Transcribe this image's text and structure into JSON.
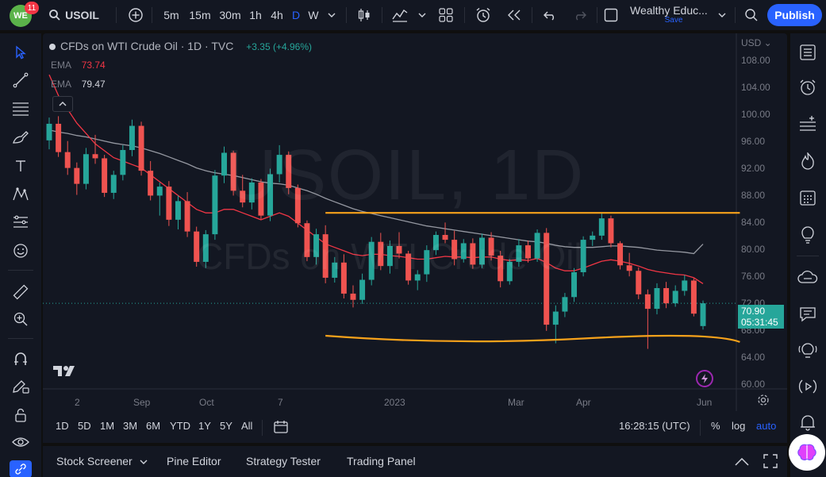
{
  "topbar": {
    "avatar_text": "WE",
    "notification_count": "11",
    "symbol": "USOIL",
    "timeframes": [
      "5m",
      "15m",
      "30m",
      "1h",
      "4h",
      "D",
      "W"
    ],
    "active_timeframe": "D",
    "layout_name": "Wealthy Educ...",
    "layout_status": "Save",
    "publish_label": "Publish"
  },
  "legend": {
    "instrument": "CFDs on WTI Crude Oil",
    "interval": "1D",
    "source": "TVC",
    "change": "+3.35 (+4.96%)"
  },
  "indicators": [
    {
      "name": "EMA",
      "value": "73.74",
      "color": "#f23645"
    },
    {
      "name": "EMA",
      "value": "79.47",
      "color": "#b2b5be"
    }
  ],
  "watermark": {
    "symbol": "USOIL, 1D",
    "description": "CFDs on WTI Crude Oil"
  },
  "price_axis": {
    "currency": "USD",
    "labels": [
      "108.00",
      "104.00",
      "100.00",
      "96.00",
      "92.00",
      "88.00",
      "84.00",
      "80.00",
      "76.00",
      "72.00",
      "68.00",
      "64.00",
      "60.00"
    ],
    "last_price": "70.90",
    "countdown": "05:31:45"
  },
  "time_axis": {
    "labels": [
      "2",
      "Sep",
      "Oct",
      "7",
      "2023",
      "Mar",
      "Apr",
      "Jun"
    ]
  },
  "range_bar": {
    "ranges": [
      "1D",
      "5D",
      "1M",
      "3M",
      "6M",
      "YTD",
      "1Y",
      "5Y",
      "All"
    ],
    "clock": "16:28:15 (UTC)",
    "percent_label": "%",
    "log_label": "log",
    "auto_label": "auto"
  },
  "footer": {
    "tabs": [
      "Stock Screener",
      "Pine Editor",
      "Strategy Tester",
      "Trading Panel"
    ]
  },
  "colors": {
    "up": "#26a69a",
    "down": "#ef5350",
    "ema_fast": "#f23645",
    "ema_slow": "#9598a1",
    "trendline": "#f7a21b",
    "accent": "#2962ff"
  },
  "chart_data": {
    "type": "candlestick",
    "ylim": [
      58.5,
      110
    ],
    "x_ticks": [
      "2",
      "Sep",
      "Oct",
      "7",
      "2023",
      "Mar",
      "Apr",
      "Jun"
    ],
    "series": [
      {
        "name": "USOIL",
        "values_description": "daily OHLC",
        "values": [
          [
            94.5,
            97.8,
            93.2,
            96.9
          ],
          [
            96.9,
            98.0,
            92.1,
            92.8
          ],
          [
            92.8,
            94.4,
            89.5,
            90.5
          ],
          [
            90.5,
            91.3,
            86.6,
            88.2
          ],
          [
            88.2,
            93.4,
            87.4,
            92.5
          ],
          [
            92.5,
            95.3,
            91.1,
            91.9
          ],
          [
            91.9,
            92.4,
            86.3,
            86.9
          ],
          [
            86.9,
            90.1,
            86.0,
            89.5
          ],
          [
            89.5,
            93.8,
            88.7,
            93.1
          ],
          [
            93.1,
            97.5,
            92.2,
            96.6
          ],
          [
            96.6,
            97.2,
            89.4,
            90.1
          ],
          [
            90.1,
            91.5,
            85.8,
            86.5
          ],
          [
            86.5,
            88.4,
            83.6,
            87.8
          ],
          [
            87.8,
            88.6,
            82.1,
            83.0
          ],
          [
            83.0,
            86.5,
            81.6,
            85.7
          ],
          [
            85.7,
            87.0,
            80.5,
            81.3
          ],
          [
            81.3,
            82.0,
            76.2,
            76.9
          ],
          [
            76.9,
            81.5,
            76.0,
            80.9
          ],
          [
            80.9,
            90.2,
            80.1,
            89.4
          ],
          [
            89.4,
            93.6,
            88.3,
            92.7
          ],
          [
            92.7,
            93.0,
            86.5,
            87.2
          ],
          [
            87.2,
            89.5,
            84.8,
            85.5
          ],
          [
            85.5,
            89.0,
            84.5,
            88.4
          ],
          [
            88.4,
            88.9,
            83.1,
            83.6
          ],
          [
            83.6,
            90.4,
            82.8,
            89.6
          ],
          [
            89.6,
            93.8,
            88.4,
            92.4
          ],
          [
            92.4,
            92.9,
            86.7,
            87.6
          ],
          [
            87.6,
            88.1,
            81.9,
            82.5
          ],
          [
            82.5,
            82.9,
            77.0,
            77.6
          ],
          [
            77.6,
            81.7,
            76.5,
            80.9
          ],
          [
            80.9,
            82.2,
            73.8,
            74.6
          ],
          [
            74.6,
            77.6,
            73.9,
            76.8
          ],
          [
            76.8,
            78.0,
            71.6,
            72.3
          ],
          [
            72.3,
            73.5,
            70.3,
            71.4
          ],
          [
            71.4,
            75.2,
            70.8,
            74.3
          ],
          [
            74.3,
            80.5,
            73.5,
            79.8
          ],
          [
            79.8,
            81.1,
            75.7,
            76.3
          ],
          [
            76.3,
            80.0,
            75.2,
            79.2
          ],
          [
            79.2,
            81.2,
            77.4,
            78.1
          ],
          [
            78.1,
            78.5,
            73.6,
            74.2
          ],
          [
            74.2,
            75.7,
            72.8,
            75.1
          ],
          [
            75.1,
            79.3,
            74.0,
            78.6
          ],
          [
            78.6,
            81.3,
            77.9,
            80.8
          ],
          [
            80.8,
            82.6,
            79.6,
            80.1
          ],
          [
            80.1,
            81.4,
            76.4,
            77.3
          ],
          [
            77.3,
            80.2,
            76.8,
            79.6
          ],
          [
            79.6,
            80.3,
            75.9,
            76.5
          ],
          [
            76.5,
            81.0,
            76.0,
            80.4
          ],
          [
            80.4,
            81.2,
            77.1,
            77.8
          ],
          [
            77.8,
            78.5,
            73.2,
            74.1
          ],
          [
            74.1,
            77.3,
            73.6,
            76.9
          ],
          [
            76.9,
            80.2,
            76.2,
            79.3
          ],
          [
            79.3,
            80.0,
            76.8,
            77.4
          ],
          [
            77.4,
            81.6,
            76.9,
            81.1
          ],
          [
            81.1,
            81.8,
            66.9,
            67.8
          ],
          [
            67.8,
            70.6,
            65.1,
            69.7
          ],
          [
            69.7,
            72.4,
            68.9,
            71.8
          ],
          [
            71.8,
            76.0,
            71.1,
            75.4
          ],
          [
            75.4,
            80.6,
            74.8,
            80.1
          ],
          [
            80.1,
            81.3,
            79.2,
            80.7
          ],
          [
            80.7,
            83.9,
            80.1,
            83.2
          ],
          [
            83.2,
            83.6,
            79.0,
            79.6
          ],
          [
            79.6,
            79.9,
            75.8,
            76.4
          ],
          [
            76.4,
            78.2,
            74.8,
            75.6
          ],
          [
            75.6,
            76.1,
            71.5,
            72.2
          ],
          [
            72.2,
            72.9,
            64.3,
            70.1
          ],
          [
            70.1,
            73.8,
            69.3,
            73.1
          ],
          [
            73.1,
            74.0,
            70.2,
            70.9
          ],
          [
            70.9,
            73.5,
            70.4,
            72.7
          ],
          [
            72.7,
            75.0,
            72.0,
            74.2
          ],
          [
            74.2,
            74.5,
            69.0,
            69.4
          ],
          [
            67.6,
            71.3,
            67.1,
            70.9
          ]
        ]
      },
      {
        "name": "EMA",
        "values": [
          104,
          101,
          99,
          97,
          95.5,
          94,
          93,
          92,
          91.5,
          91,
          90.5,
          89.5,
          88.5,
          87.5,
          86.5,
          85.5,
          84.5,
          84,
          84,
          84.5,
          84.5,
          84,
          83.5,
          83,
          83.5,
          84,
          83.5,
          82.5,
          81.5,
          80.5,
          79.5,
          79,
          78.5,
          78,
          77.8,
          78,
          78,
          77.8,
          77.7,
          77.5,
          77.3,
          77.3,
          77.5,
          77.7,
          77.6,
          77.6,
          77.5,
          77.6,
          77.6,
          77.3,
          77.1,
          77.2,
          77.1,
          77.4,
          76.8,
          76,
          75.6,
          75.6,
          76,
          76.5,
          77,
          77.2,
          77,
          76.7,
          76.3,
          75.8,
          75.5,
          75.3,
          75.1,
          75,
          74.6,
          73.74
        ]
      },
      {
        "name": "EMA",
        "values": [
          96,
          95.7,
          95.5,
          95.2,
          95,
          94.7,
          94.4,
          94.1,
          93.9,
          93.7,
          93.4,
          93,
          92.6,
          92.1,
          91.6,
          91.1,
          90.5,
          90.1,
          89.8,
          89.6,
          89.4,
          89.1,
          88.8,
          88.5,
          88.3,
          88.2,
          88,
          87.6,
          87.2,
          86.7,
          86.1,
          85.6,
          85.1,
          84.6,
          84.2,
          83.9,
          83.6,
          83.3,
          83,
          82.7,
          82.4,
          82.1,
          81.9,
          81.7,
          81.5,
          81.3,
          81.1,
          80.9,
          80.7,
          80.5,
          80.3,
          80.1,
          79.9,
          79.8,
          79.6,
          79.3,
          79.1,
          79,
          79,
          79,
          79.1,
          79.2,
          79.2,
          79.1,
          79,
          78.8,
          78.6,
          78.5,
          78.4,
          78.3,
          78.1,
          79.47
        ]
      }
    ]
  }
}
